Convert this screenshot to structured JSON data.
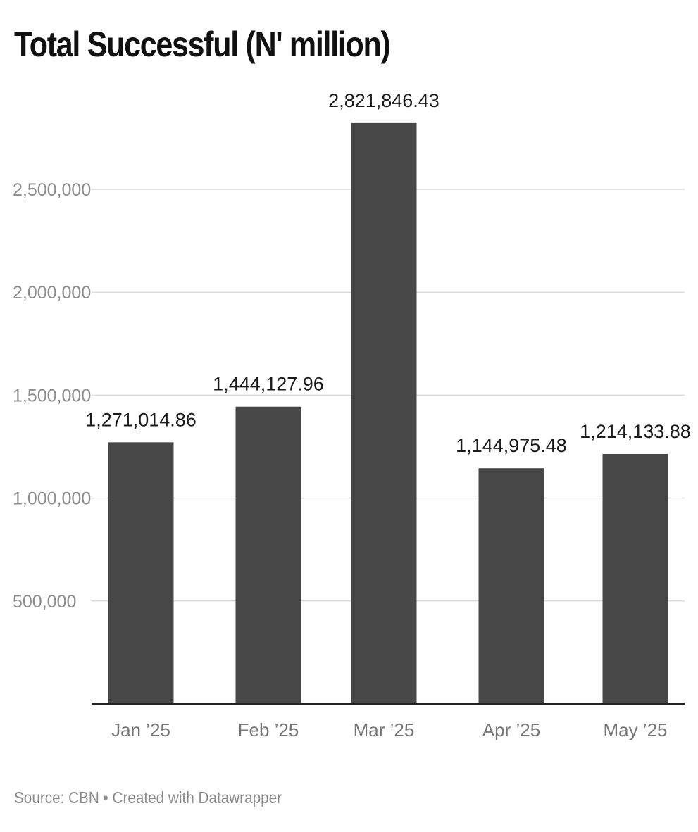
{
  "chart_data": {
    "type": "bar",
    "title": "Total Successful (N' million)",
    "categories": [
      "Jan ’25",
      "Feb ’25",
      "Mar ’25",
      "Apr ’25",
      "May ’25"
    ],
    "values": [
      1271014.86,
      1444127.96,
      2821846.43,
      1144975.48,
      1214133.88
    ],
    "value_labels": [
      "1,271,014.86",
      "1,444,127.96",
      "2,821,846.43",
      "1,144,975.48",
      "1,214,133.88"
    ],
    "yticks": [
      500000,
      1000000,
      1500000,
      2000000,
      2500000
    ],
    "ytick_labels": [
      "500,000",
      "1,000,000",
      "1,500,000",
      "2,000,000",
      "2,500,000"
    ],
    "ylim": [
      0,
      3000000
    ],
    "grid": true,
    "bar_color": "#474747",
    "source": "Source: CBN • Created with Datawrapper"
  }
}
